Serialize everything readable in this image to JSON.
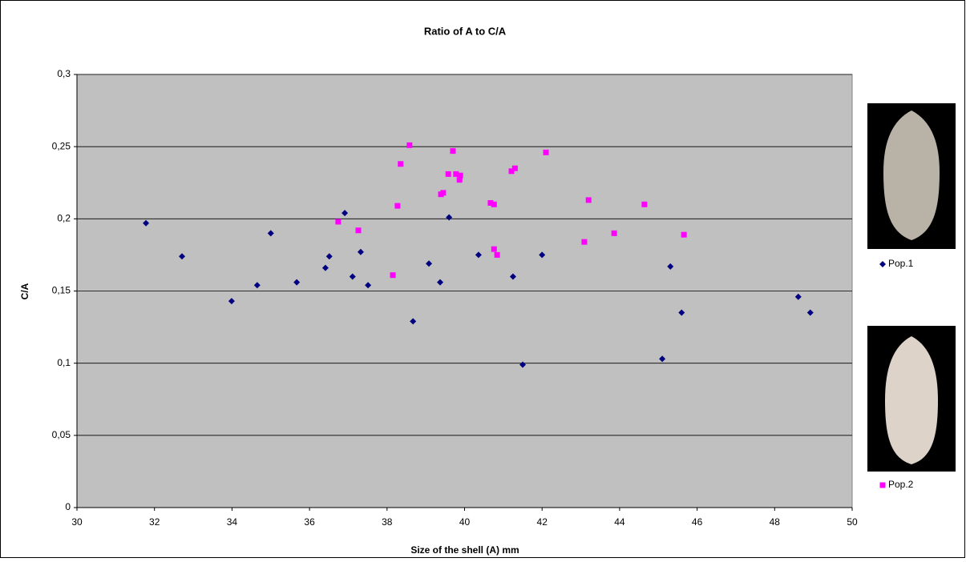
{
  "chart_data": {
    "type": "scatter",
    "title": "Ratio of A to C/A",
    "x_label": "Size of the shell (A) mm",
    "y_label": "C/A",
    "xlim": [
      30,
      50
    ],
    "xticks": [
      30,
      32,
      34,
      36,
      38,
      40,
      42,
      44,
      46,
      48,
      50
    ],
    "ylim": [
      0,
      0.3
    ],
    "yticks": [
      0,
      {
        "value": 0.05,
        "label": "0,05"
      },
      {
        "value": 0.1,
        "label": "0,1"
      },
      {
        "value": 0.15,
        "label": "0,15"
      },
      {
        "value": 0.2,
        "label": "0,2"
      },
      {
        "value": 0.25,
        "label": "0,25"
      },
      {
        "value": 0.3,
        "label": "0,3"
      }
    ],
    "grid": true,
    "legend": "right",
    "series": [
      {
        "name": "Pop.1",
        "color": "#000080",
        "marker": "diamond",
        "x": [
          31.78,
          32.71,
          33.99,
          34.65,
          35.0,
          35.67,
          36.41,
          36.51,
          36.91,
          37.11,
          37.32,
          37.51,
          38.67,
          39.08,
          39.37,
          39.6,
          40.36,
          41.25,
          41.5,
          42.0,
          45.1,
          45.31,
          45.6,
          48.61,
          48.92
        ],
        "values": [
          0.197,
          0.174,
          0.143,
          0.154,
          0.19,
          0.156,
          0.166,
          0.174,
          0.204,
          0.16,
          0.177,
          0.154,
          0.129,
          0.169,
          0.156,
          0.201,
          0.175,
          0.16,
          0.099,
          0.175,
          0.103,
          0.167,
          0.135,
          0.146,
          0.135
        ]
      },
      {
        "name": "Pop.2",
        "color": "#ff00ff",
        "marker": "square",
        "x": [
          36.74,
          37.26,
          38.15,
          38.27,
          38.35,
          38.58,
          39.39,
          39.45,
          39.58,
          39.7,
          39.78,
          39.87,
          39.89,
          40.67,
          40.76,
          40.76,
          40.84,
          41.21,
          41.3,
          42.1,
          43.09,
          43.2,
          43.86,
          44.64,
          45.66
        ],
        "values": [
          0.198,
          0.192,
          0.161,
          0.209,
          0.238,
          0.251,
          0.217,
          0.218,
          0.231,
          0.247,
          0.231,
          0.227,
          0.23,
          0.211,
          0.21,
          0.179,
          0.175,
          0.233,
          0.235,
          0.246,
          0.184,
          0.213,
          0.19,
          0.21,
          0.189
        ]
      }
    ]
  }
}
